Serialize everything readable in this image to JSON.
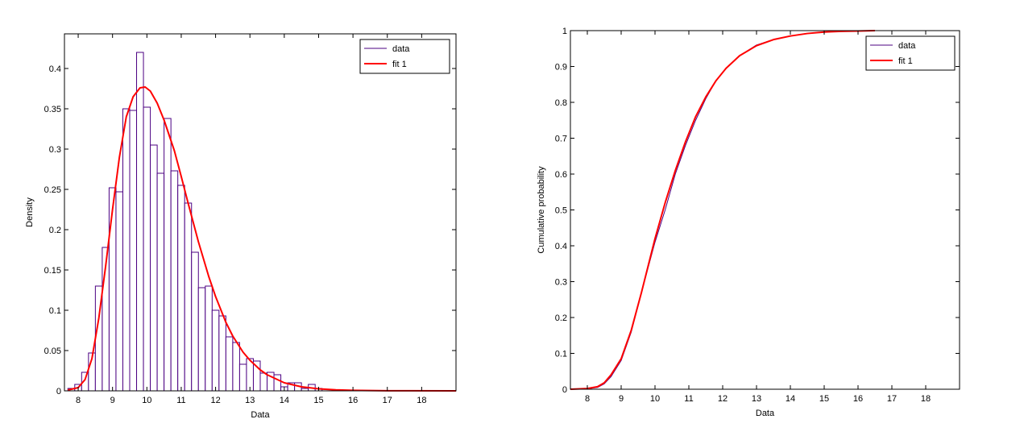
{
  "chart_data": [
    {
      "type": "bar",
      "title": "",
      "xlabel": "Data",
      "ylabel": "Density",
      "xlim": [
        7.6,
        19
      ],
      "ylim": [
        0,
        0.443
      ],
      "xticks": [
        "8",
        "9",
        "10",
        "11",
        "12",
        "13",
        "14",
        "15",
        "16",
        "17",
        "18"
      ],
      "yticks": [
        "0",
        "0.05",
        "0.1",
        "0.15",
        "0.2",
        "0.25",
        "0.3",
        "0.35",
        "0.4"
      ],
      "bin_start": 7.7,
      "bin_width": 0.2,
      "values": [
        0.003,
        0.008,
        0.023,
        0.047,
        0.13,
        0.178,
        0.252,
        0.247,
        0.35,
        0.348,
        0.42,
        0.352,
        0.305,
        0.27,
        0.338,
        0.273,
        0.255,
        0.233,
        0.172,
        0.128,
        0.13,
        0.1,
        0.093,
        0.067,
        0.06,
        0.033,
        0.04,
        0.037,
        0.022,
        0.023,
        0.02,
        0.005,
        0.01,
        0.01,
        0.003,
        0.008,
        0.003
      ],
      "series": [
        {
          "name": "data",
          "color": "#4b0082"
        },
        {
          "name": "fit 1",
          "color": "#ff0000",
          "x": [
            7.7,
            8,
            8.2,
            8.4,
            8.6,
            8.8,
            9,
            9.2,
            9.4,
            9.6,
            9.8,
            9.95,
            10.1,
            10.3,
            10.5,
            10.8,
            11,
            11.2,
            11.5,
            11.8,
            12,
            12.3,
            12.5,
            12.8,
            13,
            13.3,
            13.5,
            14,
            14.5,
            15,
            15.5,
            16,
            17,
            19
          ],
          "y": [
            0.001,
            0.004,
            0.014,
            0.04,
            0.09,
            0.155,
            0.225,
            0.29,
            0.34,
            0.365,
            0.376,
            0.377,
            0.372,
            0.357,
            0.336,
            0.298,
            0.266,
            0.233,
            0.185,
            0.142,
            0.117,
            0.085,
            0.068,
            0.048,
            0.038,
            0.026,
            0.02,
            0.01,
            0.005,
            0.0025,
            0.0012,
            0.0006,
            0.0001,
            0
          ]
        }
      ],
      "legend": {
        "position": "top-right",
        "entries": [
          "data",
          "fit 1"
        ]
      }
    },
    {
      "type": "line",
      "title": "",
      "xlabel": "Data",
      "ylabel": "Cumulative probability",
      "xlim": [
        7.5,
        19
      ],
      "ylim": [
        0,
        1
      ],
      "xticks": [
        "8",
        "9",
        "10",
        "11",
        "12",
        "13",
        "14",
        "15",
        "16",
        "17",
        "18"
      ],
      "yticks": [
        "0",
        "0.1",
        "0.2",
        "0.3",
        "0.4",
        "0.5",
        "0.6",
        "0.7",
        "0.8",
        "0.9",
        "1"
      ],
      "series": [
        {
          "name": "data",
          "color": "#4b0082",
          "x": [
            7.5,
            8,
            8.3,
            8.5,
            8.7,
            9,
            9.3,
            9.6,
            10,
            10.3,
            10.6,
            10.9,
            11.2,
            11.5,
            11.8,
            12.1,
            12.5,
            13,
            13.5,
            14,
            14.5,
            15,
            15.5,
            16,
            16.5
          ],
          "y": [
            0,
            0.001,
            0.005,
            0.015,
            0.035,
            0.08,
            0.16,
            0.27,
            0.41,
            0.5,
            0.6,
            0.68,
            0.75,
            0.81,
            0.86,
            0.895,
            0.93,
            0.96,
            0.975,
            0.985,
            0.992,
            0.996,
            0.998,
            0.999,
            1
          ]
        },
        {
          "name": "fit 1",
          "color": "#ff0000",
          "x": [
            7.5,
            8,
            8.3,
            8.5,
            8.7,
            9,
            9.3,
            9.6,
            10,
            10.3,
            10.6,
            10.9,
            11.2,
            11.5,
            11.8,
            12.1,
            12.5,
            13,
            13.5,
            14,
            14.5,
            15,
            15.5,
            16,
            16.5
          ],
          "y": [
            0,
            0.002,
            0.007,
            0.018,
            0.04,
            0.085,
            0.165,
            0.27,
            0.42,
            0.52,
            0.61,
            0.69,
            0.76,
            0.815,
            0.86,
            0.895,
            0.93,
            0.958,
            0.975,
            0.985,
            0.992,
            0.996,
            0.998,
            0.999,
            1
          ]
        }
      ],
      "legend": {
        "position": "top-right",
        "entries": [
          "data",
          "fit 1"
        ]
      }
    }
  ]
}
